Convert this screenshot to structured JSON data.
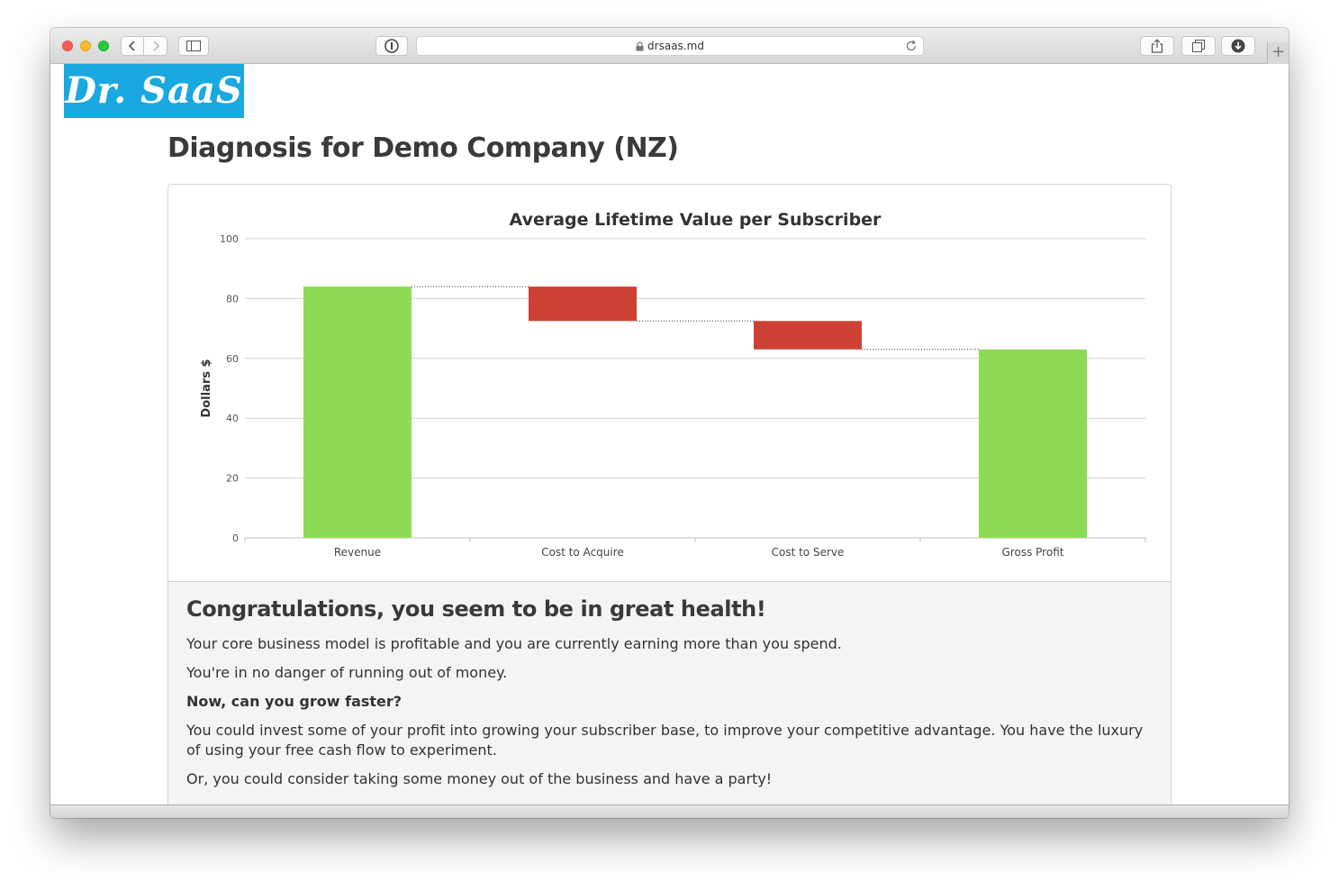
{
  "browser": {
    "url": "drsaas.md",
    "new_tab_label": "+"
  },
  "brand": {
    "logo_text": "Dr. SaaS",
    "color": "#19a8e0"
  },
  "page": {
    "title": "Diagnosis for Demo Company (NZ)"
  },
  "chart_data": {
    "type": "bar",
    "subtype": "waterfall",
    "title": "Average Lifetime Value per Subscriber",
    "ylabel": "Dollars $",
    "xlabel": "",
    "ylim": [
      0,
      100
    ],
    "yticks": [
      0,
      20,
      40,
      60,
      80,
      100
    ],
    "categories": [
      "Revenue",
      "Cost to Acquire",
      "Cost to Serve",
      "Gross Profit"
    ],
    "bars": [
      {
        "category": "Revenue",
        "from": 0,
        "to": 84,
        "kind": "total"
      },
      {
        "category": "Cost to Acquire",
        "from": 84,
        "to": 72.5,
        "kind": "decrease"
      },
      {
        "category": "Cost to Serve",
        "from": 72.5,
        "to": 63,
        "kind": "decrease"
      },
      {
        "category": "Gross Profit",
        "from": 0,
        "to": 63,
        "kind": "total"
      }
    ],
    "colors": {
      "total": "#8ddb54",
      "decrease": "#cd4134"
    },
    "grid": true,
    "connectors": "dotted"
  },
  "health": {
    "heading": "Congratulations, you seem to be in great health!",
    "paragraphs": [
      "Your core business model is profitable and you are currently earning more than you spend.",
      "You're in no danger of running out of money.",
      "Now, can you grow faster?",
      "You could invest some of your profit into growing your subscriber base, to improve your competitive advantage. You have the luxury of using your free cash flow to experiment.",
      "Or, you could consider taking some money out of the business and have a party!"
    ]
  }
}
